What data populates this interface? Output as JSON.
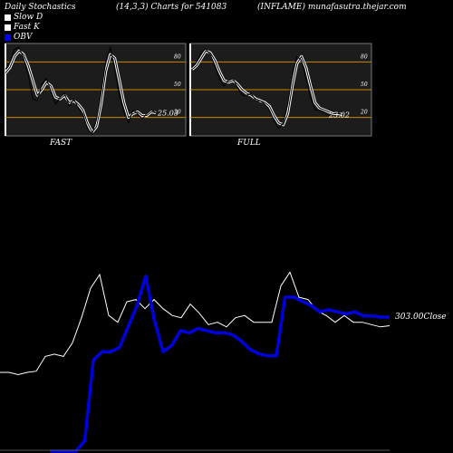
{
  "header": {
    "title": "Daily Stochastics",
    "params": "(14,3,3) Charts for 541083",
    "source": "(INFLAME) munafasutra.thejar.com"
  },
  "legend": [
    {
      "label": "Slow  D",
      "color": "#ffffff"
    },
    {
      "label": "Fast K",
      "color": "#ffffff"
    },
    {
      "label": "OBV",
      "color": "#0000ff"
    }
  ],
  "colors": {
    "background": "#000000",
    "panel": "#1c1c1c",
    "level_line": "#cc8800",
    "obv": "#0000dd",
    "price": "#ffffff"
  },
  "chart_data": [
    {
      "type": "line",
      "title": "FAST",
      "levels": [
        80,
        50,
        20
      ],
      "ylim": [
        0,
        100
      ],
      "last_value_label": "25.03",
      "series": [
        {
          "name": "Slow  D",
          "values": [
            68,
            74,
            86,
            92,
            88,
            76,
            60,
            44,
            50,
            58,
            54,
            42,
            40,
            44,
            36,
            38,
            34,
            28,
            14,
            4,
            10,
            34,
            70,
            88,
            84,
            60,
            36,
            20,
            24,
            26,
            22,
            22,
            26,
            25
          ]
        },
        {
          "name": "Fast K",
          "values": [
            72,
            80,
            94,
            96,
            84,
            66,
            40,
            38,
            56,
            62,
            48,
            34,
            42,
            46,
            32,
            40,
            30,
            24,
            8,
            2,
            18,
            46,
            80,
            96,
            72,
            44,
            26,
            14,
            28,
            24,
            18,
            24,
            28,
            25
          ]
        }
      ]
    },
    {
      "type": "line",
      "title": "FULL",
      "levels": [
        80,
        50,
        20
      ],
      "ylim": [
        0,
        100
      ],
      "last_value_label": "23.02",
      "series": [
        {
          "name": "Slow  D",
          "values": [
            72,
            76,
            84,
            92,
            90,
            82,
            70,
            60,
            58,
            60,
            56,
            50,
            46,
            44,
            40,
            38,
            36,
            32,
            22,
            14,
            12,
            24,
            54,
            78,
            86,
            74,
            54,
            36,
            30,
            28,
            26,
            24,
            24,
            23
          ]
        },
        {
          "name": "Fast K",
          "values": [
            74,
            80,
            90,
            94,
            88,
            76,
            62,
            54,
            60,
            62,
            52,
            44,
            44,
            46,
            38,
            38,
            34,
            28,
            16,
            8,
            14,
            34,
            66,
            86,
            82,
            62,
            42,
            28,
            28,
            26,
            22,
            24,
            25,
            23
          ]
        }
      ]
    },
    {
      "type": "line",
      "title": "",
      "last_value_label": "303.00",
      "last_value_suffix": "Close",
      "series": [
        {
          "name": "Close",
          "values": [
            262,
            262,
            260,
            262,
            263,
            276,
            278,
            276,
            288,
            310,
            336,
            348,
            312,
            306,
            324,
            326,
            318,
            326,
            318,
            312,
            310,
            322,
            314,
            304,
            306,
            302,
            310,
            312,
            306,
            306,
            306,
            338,
            350,
            328,
            326,
            316,
            312,
            306,
            312,
            306,
            306,
            304,
            302,
            303
          ]
        },
        {
          "name": "OBV",
          "values": [
            175,
            175,
            175,
            175,
            185,
            262,
            270,
            270,
            274,
            294,
            314,
            342,
            300,
            270,
            276,
            290,
            288,
            292,
            290,
            288,
            288,
            286,
            280,
            272,
            268,
            266,
            266,
            322,
            322,
            318,
            314,
            308,
            310,
            308,
            306,
            308,
            304,
            304,
            303,
            303
          ]
        }
      ]
    }
  ]
}
